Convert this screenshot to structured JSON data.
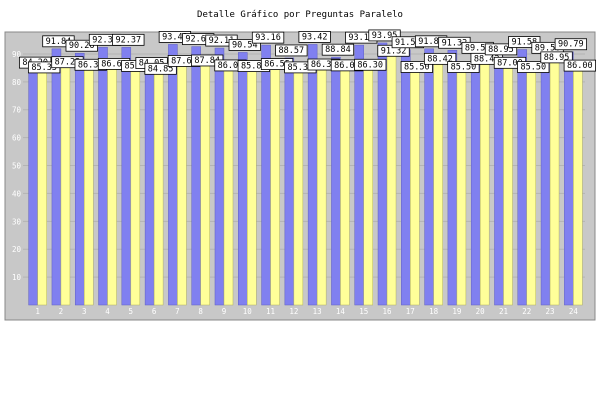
{
  "chart_data": {
    "type": "bar",
    "title": "Detalle Gráfico por Preguntas Paralelo",
    "xlabel": "",
    "ylabel": "",
    "ylim": [
      0,
      95
    ],
    "yticks": [
      10,
      20,
      30,
      40,
      50,
      60,
      70,
      80,
      90
    ],
    "grid": true,
    "legend": "none",
    "categories": [
      "1",
      "2",
      "3",
      "4",
      "5",
      "6",
      "7",
      "8",
      "9",
      "10",
      "11",
      "12",
      "13",
      "14",
      "15",
      "16",
      "17",
      "18",
      "19",
      "20",
      "21",
      "22",
      "23",
      "24"
    ],
    "series": [
      {
        "values": [
          84.2,
          91.84,
          90.26,
          92.37,
          92.37,
          84.05,
          93.42,
          92.63,
          92.11,
          90.54,
          93.16,
          88.57,
          93.42,
          88.84,
          93.16,
          93.95,
          91.5,
          91.84,
          91.32,
          89.5,
          88.95,
          91.58,
          89.5,
          90.79
        ]
      },
      {
        "values": [
          85.35,
          87.22,
          86.3,
          86.61,
          85.87,
          84.85,
          87.67,
          87.84,
          86.06,
          85.84,
          86.55,
          85.36,
          86.39,
          86.08,
          86.3,
          91.32,
          85.5,
          88.42,
          85.5,
          88.42,
          87.0,
          85.5,
          88.95,
          86.0
        ]
      }
    ],
    "colors": {
      "series1": "#8080f0",
      "series2": "#ffff99",
      "plot_bg": "#c8c8c8",
      "tick_text": "#ffffff",
      "label_box": "#ffffff"
    }
  }
}
